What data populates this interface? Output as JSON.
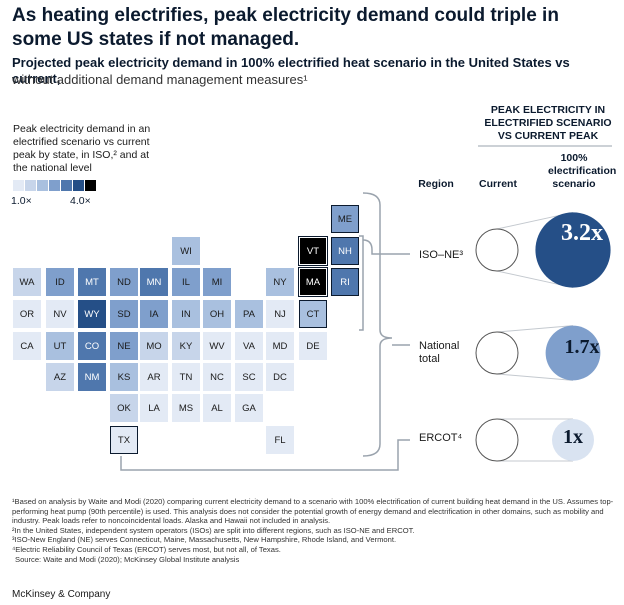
{
  "title": "As heating electrifies, peak electricity demand could triple in some US states if not managed.",
  "subtitle": "Projected peak electricity demand in 100% electrified heat scenario in the United States vs current,",
  "subtitle_cont": "without additional demand management measures¹",
  "legend": {
    "text": "Peak electricity demand in an electrified scenario vs current peak by state, in ISO,² and at the national level",
    "min_label": "1.0×",
    "max_label": "4.0×",
    "colors": [
      "#e3eaf5",
      "#c7d5ea",
      "#a9c0df",
      "#7f9fcc",
      "#4f77ad",
      "#254f87",
      "#000000"
    ]
  },
  "headers": {
    "region": "Region",
    "current": "Current",
    "scenario": "100% electrification scenario",
    "group": "PEAK ELECTRICITY IN ELECTRIFIED SCENARIO VS CURRENT PEAK"
  },
  "chart_data": {
    "type": "bubble",
    "regions": [
      {
        "name": "ISO–NE³",
        "current": 1,
        "scenario": 3.2,
        "scenario_label": "3.2x",
        "color": "#254f87"
      },
      {
        "name": "National total",
        "current": 1,
        "scenario": 1.7,
        "scenario_label": "1.7x",
        "color": "#7f9fcc"
      },
      {
        "name": "ERCOT⁴",
        "current": 1,
        "scenario": 1,
        "scenario_label": "1x",
        "color": "#d9e3f1"
      }
    ],
    "states": [
      {
        "code": "ME",
        "level": 3
      },
      {
        "code": "WI",
        "level": 2
      },
      {
        "code": "VT",
        "level": 6
      },
      {
        "code": "NH",
        "level": 4
      },
      {
        "code": "WA",
        "level": 1
      },
      {
        "code": "ID",
        "level": 3
      },
      {
        "code": "MT",
        "level": 4
      },
      {
        "code": "ND",
        "level": 3
      },
      {
        "code": "MN",
        "level": 4
      },
      {
        "code": "IL",
        "level": 3
      },
      {
        "code": "MI",
        "level": 3
      },
      {
        "code": "NY",
        "level": 2
      },
      {
        "code": "MA",
        "level": 6
      },
      {
        "code": "RI",
        "level": 4
      },
      {
        "code": "OR",
        "level": 0
      },
      {
        "code": "NV",
        "level": 0
      },
      {
        "code": "WY",
        "level": 5
      },
      {
        "code": "SD",
        "level": 3
      },
      {
        "code": "IA",
        "level": 3
      },
      {
        "code": "IN",
        "level": 2
      },
      {
        "code": "OH",
        "level": 2
      },
      {
        "code": "PA",
        "level": 2
      },
      {
        "code": "NJ",
        "level": 0
      },
      {
        "code": "CT",
        "level": 2
      },
      {
        "code": "CA",
        "level": 0
      },
      {
        "code": "UT",
        "level": 2
      },
      {
        "code": "CO",
        "level": 4
      },
      {
        "code": "NE",
        "level": 3
      },
      {
        "code": "MO",
        "level": 1
      },
      {
        "code": "KY",
        "level": 1
      },
      {
        "code": "WV",
        "level": 0
      },
      {
        "code": "VA",
        "level": 0
      },
      {
        "code": "MD",
        "level": 0
      },
      {
        "code": "DE",
        "level": 0
      },
      {
        "code": "AZ",
        "level": 1
      },
      {
        "code": "NM",
        "level": 4
      },
      {
        "code": "KS",
        "level": 2
      },
      {
        "code": "AR",
        "level": 0
      },
      {
        "code": "TN",
        "level": 0
      },
      {
        "code": "NC",
        "level": 0
      },
      {
        "code": "SC",
        "level": 0
      },
      {
        "code": "DC",
        "level": 0
      },
      {
        "code": "OK",
        "level": 1
      },
      {
        "code": "LA",
        "level": 0
      },
      {
        "code": "MS",
        "level": 0
      },
      {
        "code": "AL",
        "level": 0
      },
      {
        "code": "GA",
        "level": 0
      },
      {
        "code": "TX",
        "level": 0
      },
      {
        "code": "FL",
        "level": 0
      }
    ]
  },
  "footnotes": [
    "¹Based on analysis by Waite and Modi (2020) comparing current electricity demand to a scenario with 100% electrification of current building heat demand in the US. Assumes top-performing heat pump (90th percentile) is used. This analysis does not consider the potential growth of energy demand and electrification in other domains, such as mobility and industry. Peak loads refer to noncoincidental loads. Alaska and Hawaii not included in analysis.",
    "²In the United States, independent system operators (ISOs) are split into different regions, such as ISO-NE and ERCOT.",
    "³ISO-New England (NE) serves Connecticut, Maine, Massachusetts, New Hampshire, Rhode Island, and Vermont.",
    "⁴Electric Reliability Council of Texas (ERCOT) serves most, but not all, of Texas.",
    "Source: Waite and Modi (2020); McKinsey Global Institute analysis"
  ],
  "brand": "McKinsey & Company"
}
